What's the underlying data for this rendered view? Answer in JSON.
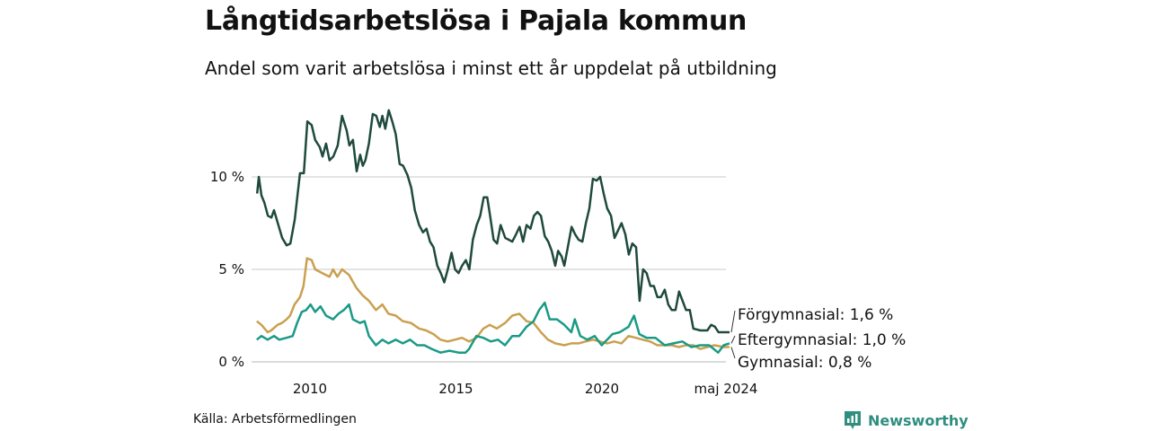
{
  "header": {
    "title": "Långtidsarbetslösa i Pajala kommun",
    "subtitle": "Andel som varit arbetslösa i minst ett år uppdelat på utbildning"
  },
  "footer": {
    "source": "Källa: Arbetsförmedlingen",
    "brand": "Newsworthy"
  },
  "chart_data": {
    "type": "line",
    "title": "Långtidsarbetslösa i Pajala kommun",
    "subtitle": "Andel som varit arbetslösa i minst ett år uppdelat på utbildning",
    "xlabel": "",
    "ylabel": "",
    "xlim": [
      2008.0,
      2024.37
    ],
    "ylim": [
      0,
      14
    ],
    "grid": true,
    "y_ticks": [
      {
        "v": 0,
        "label": "0 %"
      },
      {
        "v": 5,
        "label": "5 %"
      },
      {
        "v": 10,
        "label": "10 %"
      }
    ],
    "x_ticks": [
      {
        "v": 2010,
        "label": "2010"
      },
      {
        "v": 2015,
        "label": "2015"
      },
      {
        "v": 2020,
        "label": "2020"
      },
      {
        "v": 2024.37,
        "label": "maj 2024"
      }
    ],
    "series": [
      {
        "name": "Förgymnasial",
        "end_label": "Förgymnasial: 1,6 %",
        "color": "#1f4a3d",
        "points": [
          [
            2008.19,
            9.1
          ],
          [
            2008.25,
            10.0
          ],
          [
            2008.34,
            9.0
          ],
          [
            2008.44,
            8.6
          ],
          [
            2008.56,
            7.9
          ],
          [
            2008.68,
            7.8
          ],
          [
            2008.77,
            8.2
          ],
          [
            2008.9,
            7.5
          ],
          [
            2009.05,
            6.7
          ],
          [
            2009.2,
            6.3
          ],
          [
            2009.33,
            6.4
          ],
          [
            2009.48,
            7.7
          ],
          [
            2009.66,
            10.2
          ],
          [
            2009.79,
            10.2
          ],
          [
            2009.91,
            13.0
          ],
          [
            2010.06,
            12.8
          ],
          [
            2010.18,
            12.0
          ],
          [
            2010.34,
            11.6
          ],
          [
            2010.43,
            11.1
          ],
          [
            2010.55,
            11.8
          ],
          [
            2010.67,
            10.9
          ],
          [
            2010.8,
            11.1
          ],
          [
            2010.95,
            11.7
          ],
          [
            2011.1,
            13.3
          ],
          [
            2011.26,
            12.5
          ],
          [
            2011.35,
            11.7
          ],
          [
            2011.47,
            12.0
          ],
          [
            2011.6,
            10.3
          ],
          [
            2011.72,
            11.2
          ],
          [
            2011.81,
            10.6
          ],
          [
            2011.9,
            10.9
          ],
          [
            2012.02,
            11.8
          ],
          [
            2012.15,
            13.4
          ],
          [
            2012.27,
            13.3
          ],
          [
            2012.39,
            12.7
          ],
          [
            2012.48,
            13.3
          ],
          [
            2012.58,
            12.6
          ],
          [
            2012.7,
            13.6
          ],
          [
            2012.82,
            13.0
          ],
          [
            2012.94,
            12.3
          ],
          [
            2013.07,
            10.7
          ],
          [
            2013.19,
            10.6
          ],
          [
            2013.34,
            10.1
          ],
          [
            2013.47,
            9.4
          ],
          [
            2013.59,
            8.2
          ],
          [
            2013.74,
            7.4
          ],
          [
            2013.87,
            7.0
          ],
          [
            2013.99,
            7.2
          ],
          [
            2014.11,
            6.5
          ],
          [
            2014.23,
            6.2
          ],
          [
            2014.36,
            5.2
          ],
          [
            2014.48,
            4.8
          ],
          [
            2014.6,
            4.3
          ],
          [
            2014.72,
            5.0
          ],
          [
            2014.85,
            5.9
          ],
          [
            2014.97,
            5.0
          ],
          [
            2015.09,
            4.8
          ],
          [
            2015.21,
            5.2
          ],
          [
            2015.34,
            5.5
          ],
          [
            2015.46,
            5.0
          ],
          [
            2015.58,
            6.6
          ],
          [
            2015.71,
            7.4
          ],
          [
            2015.83,
            7.9
          ],
          [
            2015.95,
            8.9
          ],
          [
            2016.07,
            8.9
          ],
          [
            2016.17,
            7.9
          ],
          [
            2016.29,
            6.6
          ],
          [
            2016.41,
            6.4
          ],
          [
            2016.53,
            7.4
          ],
          [
            2016.69,
            6.7
          ],
          [
            2016.81,
            6.6
          ],
          [
            2016.93,
            6.5
          ],
          [
            2017.06,
            6.9
          ],
          [
            2017.18,
            7.3
          ],
          [
            2017.3,
            6.5
          ],
          [
            2017.42,
            7.4
          ],
          [
            2017.55,
            7.2
          ],
          [
            2017.67,
            7.9
          ],
          [
            2017.79,
            8.1
          ],
          [
            2017.91,
            7.9
          ],
          [
            2018.04,
            6.8
          ],
          [
            2018.16,
            6.5
          ],
          [
            2018.28,
            6.0
          ],
          [
            2018.4,
            5.2
          ],
          [
            2018.5,
            6.0
          ],
          [
            2018.62,
            5.7
          ],
          [
            2018.71,
            5.2
          ],
          [
            2018.83,
            6.2
          ],
          [
            2018.96,
            7.3
          ],
          [
            2019.08,
            6.9
          ],
          [
            2019.2,
            6.6
          ],
          [
            2019.33,
            6.5
          ],
          [
            2019.45,
            7.5
          ],
          [
            2019.57,
            8.3
          ],
          [
            2019.69,
            9.9
          ],
          [
            2019.82,
            9.8
          ],
          [
            2019.94,
            10.0
          ],
          [
            2020.06,
            9.1
          ],
          [
            2020.18,
            8.3
          ],
          [
            2020.31,
            7.9
          ],
          [
            2020.43,
            6.7
          ],
          [
            2020.55,
            7.1
          ],
          [
            2020.67,
            7.5
          ],
          [
            2020.8,
            6.9
          ],
          [
            2020.92,
            5.8
          ],
          [
            2021.04,
            6.4
          ],
          [
            2021.17,
            6.2
          ],
          [
            2021.29,
            3.3
          ],
          [
            2021.41,
            5.0
          ],
          [
            2021.53,
            4.8
          ],
          [
            2021.66,
            4.1
          ],
          [
            2021.78,
            4.1
          ],
          [
            2021.9,
            3.5
          ],
          [
            2022.02,
            3.5
          ],
          [
            2022.15,
            3.9
          ],
          [
            2022.27,
            3.1
          ],
          [
            2022.39,
            2.8
          ],
          [
            2022.52,
            2.8
          ],
          [
            2022.64,
            3.8
          ],
          [
            2022.76,
            3.3
          ],
          [
            2022.88,
            2.8
          ],
          [
            2023.01,
            2.8
          ],
          [
            2023.13,
            1.8
          ],
          [
            2023.37,
            1.7
          ],
          [
            2023.61,
            1.7
          ],
          [
            2023.74,
            2.0
          ],
          [
            2023.87,
            1.9
          ],
          [
            2023.99,
            1.6
          ],
          [
            2024.17,
            1.6
          ],
          [
            2024.37,
            1.6
          ]
        ]
      },
      {
        "name": "Eftergymnasial",
        "end_label": "Eftergymnasial: 1,0 %",
        "color": "#1a9a86",
        "points": [
          [
            2008.18,
            1.2
          ],
          [
            2008.34,
            1.4
          ],
          [
            2008.55,
            1.2
          ],
          [
            2008.77,
            1.4
          ],
          [
            2008.95,
            1.2
          ],
          [
            2009.2,
            1.3
          ],
          [
            2009.41,
            1.4
          ],
          [
            2009.56,
            2.1
          ],
          [
            2009.72,
            2.7
          ],
          [
            2009.87,
            2.8
          ],
          [
            2010.02,
            3.1
          ],
          [
            2010.18,
            2.7
          ],
          [
            2010.36,
            3.0
          ],
          [
            2010.55,
            2.5
          ],
          [
            2010.79,
            2.3
          ],
          [
            2010.98,
            2.6
          ],
          [
            2011.16,
            2.8
          ],
          [
            2011.34,
            3.1
          ],
          [
            2011.47,
            2.3
          ],
          [
            2011.71,
            2.1
          ],
          [
            2011.87,
            2.2
          ],
          [
            2012.02,
            1.4
          ],
          [
            2012.26,
            0.9
          ],
          [
            2012.48,
            1.2
          ],
          [
            2012.69,
            1.0
          ],
          [
            2012.94,
            1.2
          ],
          [
            2013.18,
            1.0
          ],
          [
            2013.43,
            1.2
          ],
          [
            2013.67,
            0.9
          ],
          [
            2013.92,
            0.9
          ],
          [
            2014.17,
            0.7
          ],
          [
            2014.47,
            0.5
          ],
          [
            2014.78,
            0.6
          ],
          [
            2015.09,
            0.5
          ],
          [
            2015.33,
            0.5
          ],
          [
            2015.45,
            0.7
          ],
          [
            2015.7,
            1.4
          ],
          [
            2015.94,
            1.3
          ],
          [
            2016.19,
            1.1
          ],
          [
            2016.44,
            1.2
          ],
          [
            2016.68,
            0.9
          ],
          [
            2016.93,
            1.4
          ],
          [
            2017.17,
            1.4
          ],
          [
            2017.42,
            1.9
          ],
          [
            2017.66,
            2.2
          ],
          [
            2017.85,
            2.8
          ],
          [
            2018.04,
            3.2
          ],
          [
            2018.21,
            2.3
          ],
          [
            2018.46,
            2.3
          ],
          [
            2018.71,
            2.0
          ],
          [
            2018.95,
            1.6
          ],
          [
            2019.07,
            2.3
          ],
          [
            2019.26,
            1.4
          ],
          [
            2019.5,
            1.2
          ],
          [
            2019.75,
            1.4
          ],
          [
            2019.99,
            0.9
          ],
          [
            2020.18,
            1.2
          ],
          [
            2020.36,
            1.5
          ],
          [
            2020.61,
            1.6
          ],
          [
            2020.91,
            1.9
          ],
          [
            2021.1,
            2.5
          ],
          [
            2021.28,
            1.5
          ],
          [
            2021.53,
            1.3
          ],
          [
            2021.83,
            1.3
          ],
          [
            2022.15,
            0.9
          ],
          [
            2022.45,
            1.0
          ],
          [
            2022.75,
            1.1
          ],
          [
            2023.06,
            0.8
          ],
          [
            2023.37,
            0.9
          ],
          [
            2023.67,
            0.9
          ],
          [
            2023.98,
            0.5
          ],
          [
            2024.17,
            0.9
          ],
          [
            2024.37,
            1.0
          ]
        ]
      },
      {
        "name": "Gymnasial",
        "end_label": "Gymnasial: 0,8 %",
        "color": "#c9a050",
        "points": [
          [
            2008.18,
            2.2
          ],
          [
            2008.34,
            2.0
          ],
          [
            2008.55,
            1.6
          ],
          [
            2008.67,
            1.7
          ],
          [
            2008.89,
            2.0
          ],
          [
            2009.04,
            2.1
          ],
          [
            2009.2,
            2.3
          ],
          [
            2009.32,
            2.5
          ],
          [
            2009.47,
            3.1
          ],
          [
            2009.66,
            3.5
          ],
          [
            2009.78,
            4.1
          ],
          [
            2009.9,
            5.6
          ],
          [
            2010.06,
            5.5
          ],
          [
            2010.18,
            5.0
          ],
          [
            2010.42,
            4.8
          ],
          [
            2010.67,
            4.6
          ],
          [
            2010.79,
            5.0
          ],
          [
            2010.94,
            4.6
          ],
          [
            2011.1,
            5.0
          ],
          [
            2011.34,
            4.7
          ],
          [
            2011.59,
            4.0
          ],
          [
            2011.8,
            3.6
          ],
          [
            2012.02,
            3.3
          ],
          [
            2012.26,
            2.8
          ],
          [
            2012.48,
            3.1
          ],
          [
            2012.69,
            2.6
          ],
          [
            2012.94,
            2.5
          ],
          [
            2013.18,
            2.2
          ],
          [
            2013.46,
            2.1
          ],
          [
            2013.74,
            1.8
          ],
          [
            2013.98,
            1.7
          ],
          [
            2014.23,
            1.5
          ],
          [
            2014.47,
            1.2
          ],
          [
            2014.72,
            1.1
          ],
          [
            2014.96,
            1.2
          ],
          [
            2015.21,
            1.3
          ],
          [
            2015.45,
            1.1
          ],
          [
            2015.7,
            1.3
          ],
          [
            2015.94,
            1.8
          ],
          [
            2016.16,
            2.0
          ],
          [
            2016.4,
            1.8
          ],
          [
            2016.68,
            2.1
          ],
          [
            2016.93,
            2.5
          ],
          [
            2017.17,
            2.6
          ],
          [
            2017.42,
            2.2
          ],
          [
            2017.66,
            2.1
          ],
          [
            2017.91,
            1.6
          ],
          [
            2018.15,
            1.2
          ],
          [
            2018.4,
            1.0
          ],
          [
            2018.71,
            0.9
          ],
          [
            2018.95,
            1.0
          ],
          [
            2019.2,
            1.0
          ],
          [
            2019.44,
            1.1
          ],
          [
            2019.69,
            1.2
          ],
          [
            2019.93,
            1.1
          ],
          [
            2020.18,
            1.0
          ],
          [
            2020.42,
            1.1
          ],
          [
            2020.67,
            1.0
          ],
          [
            2020.91,
            1.4
          ],
          [
            2021.16,
            1.3
          ],
          [
            2021.4,
            1.2
          ],
          [
            2021.65,
            1.1
          ],
          [
            2021.9,
            0.9
          ],
          [
            2022.15,
            0.9
          ],
          [
            2022.39,
            0.9
          ],
          [
            2022.63,
            0.8
          ],
          [
            2022.88,
            0.9
          ],
          [
            2023.12,
            0.9
          ],
          [
            2023.37,
            0.7
          ],
          [
            2023.61,
            0.8
          ],
          [
            2023.86,
            0.9
          ],
          [
            2024.17,
            0.8
          ],
          [
            2024.37,
            0.8
          ]
        ]
      }
    ],
    "legend": "end-of-line labels"
  }
}
